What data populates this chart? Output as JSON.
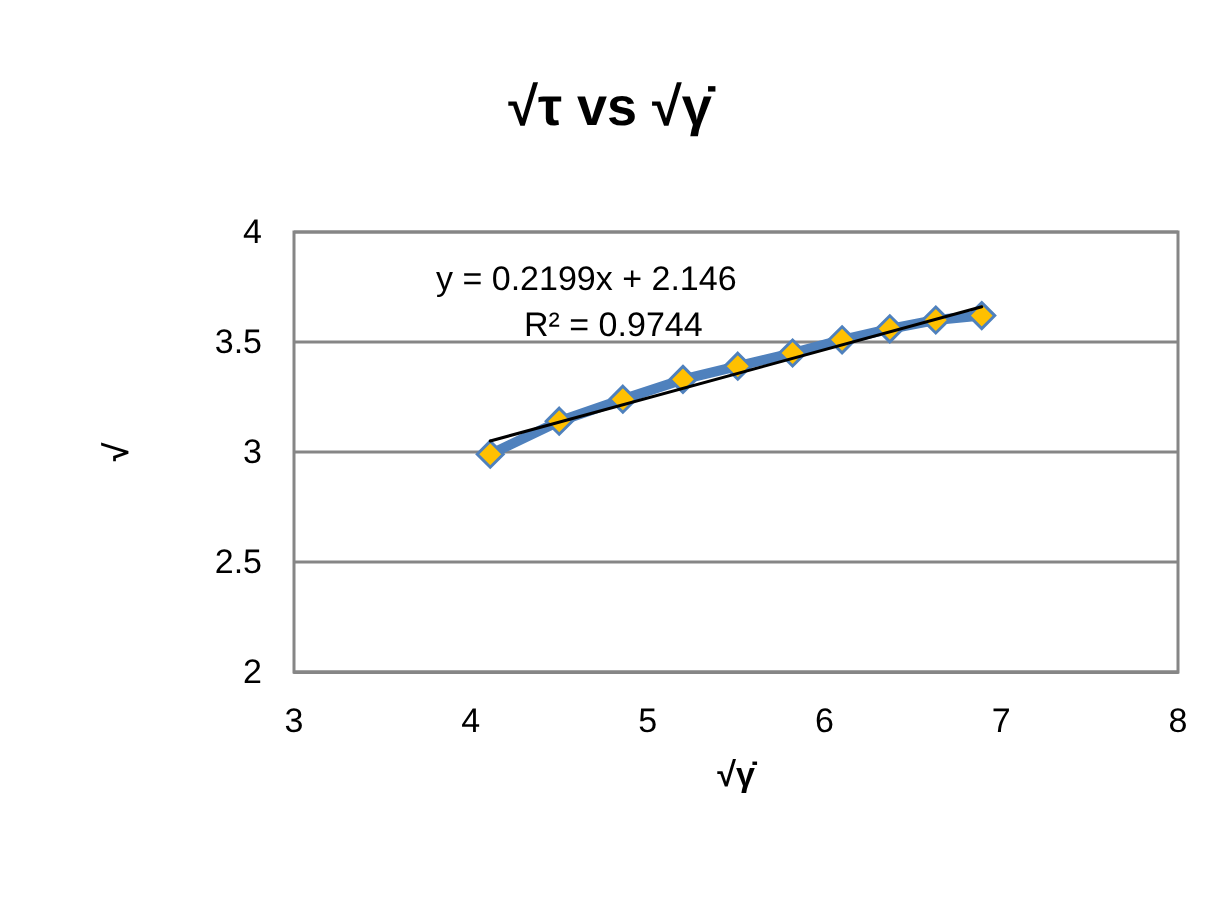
{
  "chart_data": {
    "type": "line",
    "title": "√τ vs √γ̇",
    "xlabel": "√γ̇",
    "ylabel": "√",
    "series": [
      {
        "color": "#4f81bd",
        "marker": "diamond",
        "x": [
          4.11,
          4.5,
          4.86,
          5.2,
          5.51,
          5.82,
          6.1,
          6.37,
          6.63,
          6.89
        ],
        "values": [
          2.99,
          3.14,
          3.24,
          3.33,
          3.39,
          3.45,
          3.51,
          3.56,
          3.6,
          3.62
        ]
      },
      {
        "color": "#000000",
        "marker": "none",
        "x": [
          4.11,
          6.89
        ],
        "values": [
          3.05,
          3.66
        ]
      }
    ],
    "annotations": [
      "y = 0.2199x + 2.146",
      "R² = 0.9744"
    ],
    "xlim": [
      3,
      8
    ],
    "xticks": [
      3,
      4,
      5,
      6,
      7,
      8
    ],
    "ylim": [
      2,
      4
    ],
    "yticks": [
      2,
      2.5,
      3,
      3.5,
      4
    ],
    "grid": "y"
  }
}
